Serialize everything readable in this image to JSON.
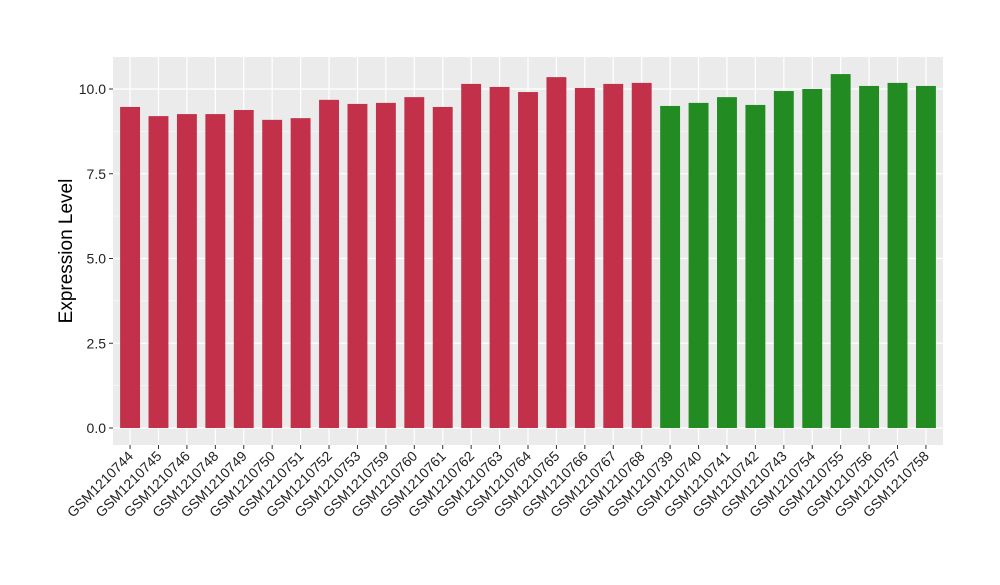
{
  "chart_data": {
    "type": "bar",
    "title": "",
    "xlabel": "",
    "ylabel": "Expression Level",
    "ylim": [
      0,
      10.9
    ],
    "yticks": [
      0,
      2.5,
      5,
      7.5,
      10
    ],
    "ytick_labels": [
      "0.0",
      "2.5",
      "5.0",
      "7.5",
      "10.0"
    ],
    "grid": true,
    "legend": "none",
    "colors": {
      "group1": "#C3304A",
      "group2": "#228B22",
      "panel": "#EBEBEB",
      "grid": "#FFFFFF"
    },
    "categories": [
      "GSM1210744",
      "GSM1210745",
      "GSM1210746",
      "GSM1210748",
      "GSM1210749",
      "GSM1210750",
      "GSM1210751",
      "GSM1210752",
      "GSM1210753",
      "GSM1210759",
      "GSM1210760",
      "GSM1210761",
      "GSM1210762",
      "GSM1210763",
      "GSM1210764",
      "GSM1210765",
      "GSM1210766",
      "GSM1210767",
      "GSM1210768",
      "GSM1210739",
      "GSM1210740",
      "GSM1210741",
      "GSM1210742",
      "GSM1210743",
      "GSM1210754",
      "GSM1210755",
      "GSM1210756",
      "GSM1210757",
      "GSM1210758"
    ],
    "values": [
      9.47,
      9.2,
      9.26,
      9.26,
      9.38,
      9.09,
      9.14,
      9.68,
      9.56,
      9.59,
      9.76,
      9.47,
      10.15,
      10.06,
      9.91,
      10.35,
      10.03,
      10.15,
      10.18,
      9.5,
      9.59,
      9.76,
      9.53,
      9.94,
      10.0,
      10.44,
      10.09,
      10.18,
      10.09
    ],
    "groups": [
      "group1",
      "group1",
      "group1",
      "group1",
      "group1",
      "group1",
      "group1",
      "group1",
      "group1",
      "group1",
      "group1",
      "group1",
      "group1",
      "group1",
      "group1",
      "group1",
      "group1",
      "group1",
      "group1",
      "group2",
      "group2",
      "group2",
      "group2",
      "group2",
      "group2",
      "group2",
      "group2",
      "group2",
      "group2"
    ]
  }
}
